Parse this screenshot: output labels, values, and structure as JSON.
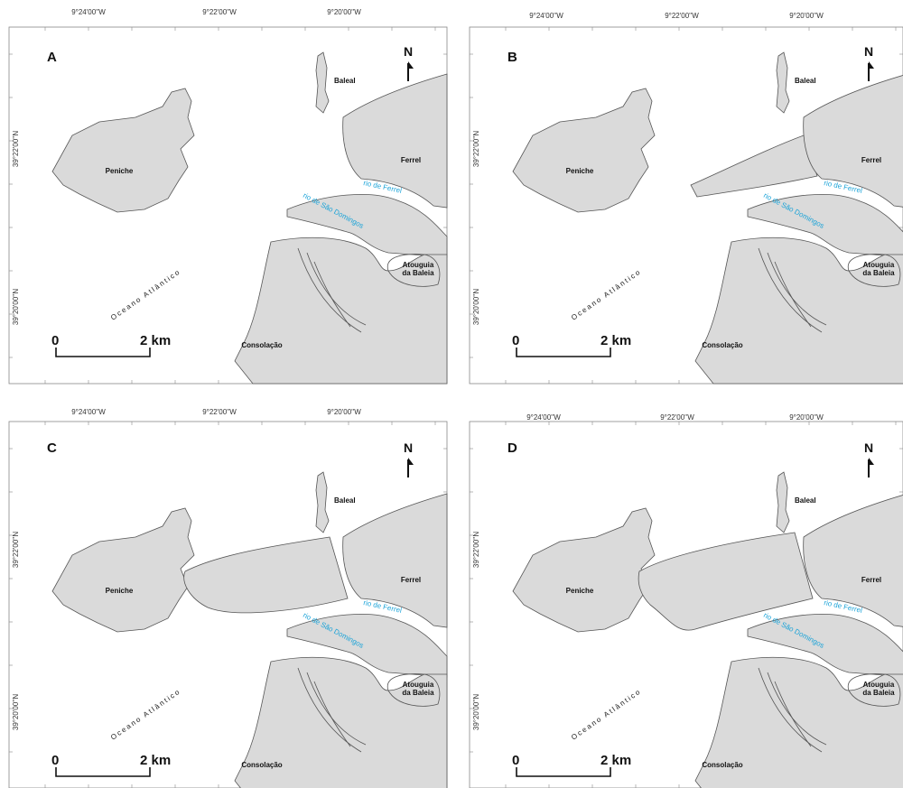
{
  "coords": {
    "top": [
      "9°24'00''W",
      "9°22'00''W",
      "9°20'00''W"
    ],
    "left": [
      "39°22'00''N",
      "39°20'00''N"
    ]
  },
  "labels": {
    "north": "N",
    "peniche": "Peniche",
    "baleal": "Baleal",
    "ferrel": "Ferrel",
    "atouguia_1": "Atouguia",
    "atouguia_2": "da Baleia",
    "consolacao": "Consolação",
    "rio_ferrel": "rio de Ferrel",
    "rio_sao_domingos": "rio de São Domingos",
    "oceano": "Oceano  Atlântico",
    "scale_zero": "0",
    "scale_two": "2 km"
  },
  "panels": [
    {
      "letter": "A",
      "stage": "island"
    },
    {
      "letter": "B",
      "stage": "spit"
    },
    {
      "letter": "C",
      "stage": "spit-longer"
    },
    {
      "letter": "D",
      "stage": "tombolo"
    }
  ],
  "colors": {
    "land": "#dadada",
    "outline": "#555555",
    "river": "#1aa3d8"
  }
}
